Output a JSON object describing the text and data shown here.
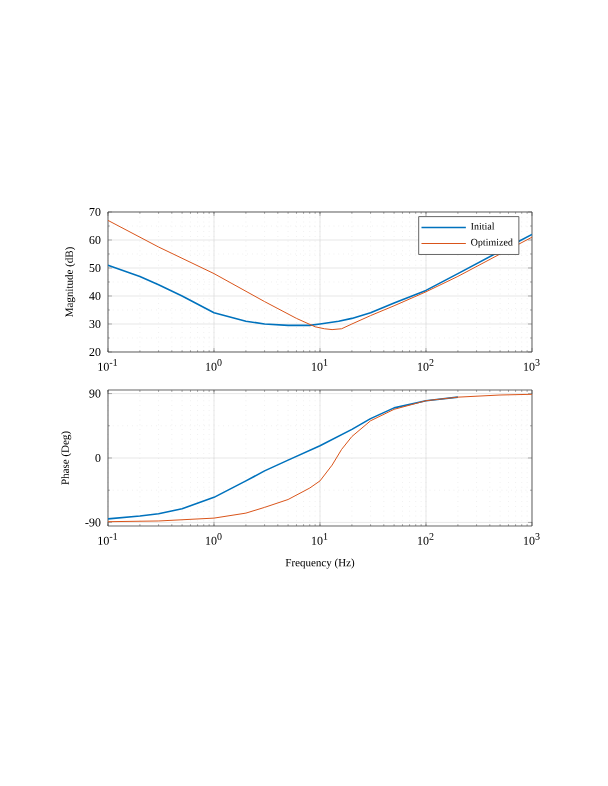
{
  "chart_data": [
    {
      "type": "line",
      "log": "x",
      "grid": true,
      "legend": "top right",
      "ylabel": "Magnitude (dB)",
      "xlim": [
        0.1,
        1000
      ],
      "ylim": [
        20,
        70
      ],
      "xticks": [
        {
          "value": 0.1,
          "label": "10$^{-1}$"
        },
        {
          "value": 1,
          "label": "10$^{0}$"
        },
        {
          "value": 10,
          "label": "10$^{1}$"
        },
        {
          "value": 100,
          "label": "10$^{2}$"
        },
        {
          "value": 1000,
          "label": "10$^{3}$"
        }
      ],
      "yticks": [
        20,
        30,
        40,
        50,
        60,
        70
      ],
      "series": [
        {
          "name": "Initial",
          "color": "#0072bd",
          "x": [
            0.1,
            0.2,
            0.3,
            0.5,
            1,
            2,
            3,
            5,
            8,
            10,
            15,
            20,
            30,
            50,
            100,
            200,
            500,
            1000
          ],
          "values": [
            51,
            47,
            44,
            40,
            34,
            31,
            30,
            29.5,
            29.5,
            30,
            31,
            32,
            34,
            37.5,
            42,
            48,
            56,
            62
          ]
        },
        {
          "name": "Optimized",
          "color": "#d95319",
          "x": [
            0.1,
            0.3,
            1,
            3,
            6,
            9,
            11,
            13,
            16,
            20,
            30,
            50,
            100,
            200,
            500,
            1000
          ],
          "values": [
            67,
            57.5,
            48,
            38,
            32,
            29,
            28.3,
            28,
            28.3,
            30,
            33,
            36.5,
            41.5,
            47,
            55,
            61
          ]
        }
      ]
    },
    {
      "type": "line",
      "log": "x",
      "grid": true,
      "xlabel": "Frequency (Hz)",
      "ylabel": "Phase (Deg)",
      "xlim": [
        0.1,
        1000
      ],
      "ylim": [
        -95,
        95
      ],
      "xticks": [
        {
          "value": 0.1,
          "label": "10$^{-1}$"
        },
        {
          "value": 1,
          "label": "10$^{0}$"
        },
        {
          "value": 10,
          "label": "10$^{1}$"
        },
        {
          "value": 100,
          "label": "10$^{2}$"
        },
        {
          "value": 1000,
          "label": "10$^{3}$"
        }
      ],
      "yticks": [
        -90,
        0,
        90
      ],
      "series": [
        {
          "color": "#0072bd",
          "x": [
            0.1,
            0.2,
            0.3,
            0.5,
            1,
            2,
            3,
            5,
            10,
            20,
            30,
            50,
            100,
            200
          ],
          "values": [
            -85,
            -81,
            -78,
            -71,
            -55,
            -32,
            -18,
            -3,
            17,
            40,
            55,
            70,
            80,
            85
          ]
        },
        {
          "color": "#d95319",
          "x": [
            0.1,
            0.3,
            1,
            2,
            3,
            5,
            8,
            10,
            13,
            16,
            20,
            30,
            50,
            100,
            200,
            500,
            1000
          ],
          "values": [
            -89,
            -88,
            -84,
            -77,
            -69,
            -58,
            -42,
            -32,
            -10,
            12,
            30,
            52,
            68,
            80,
            85,
            88,
            89
          ]
        }
      ]
    }
  ]
}
